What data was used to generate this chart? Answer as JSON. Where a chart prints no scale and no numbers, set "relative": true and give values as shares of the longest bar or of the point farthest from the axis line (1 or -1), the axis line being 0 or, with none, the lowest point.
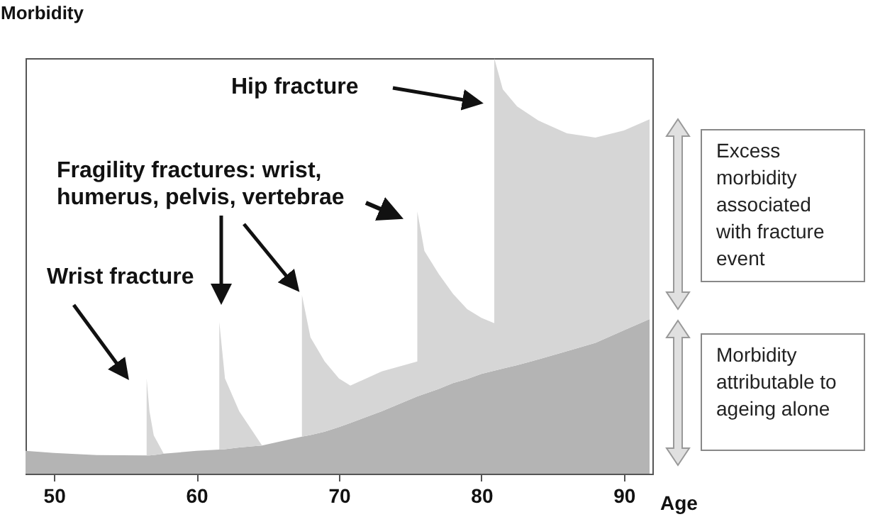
{
  "chart_data": {
    "type": "area",
    "relative": true,
    "stacked": true,
    "ylabel": "Morbidity",
    "xlabel": "Age",
    "xlim": [
      48,
      92
    ],
    "xticks": [
      50,
      60,
      70,
      80,
      90
    ],
    "x": [
      48,
      50,
      53,
      56.5,
      56.5,
      56.7,
      57.0,
      57.7,
      60,
      61.6,
      61.6,
      62.0,
      63.0,
      64.0,
      64.6,
      67.4,
      67.4,
      68,
      69,
      70,
      70.8,
      73,
      75.5,
      75.5,
      76,
      77,
      78,
      79,
      80,
      80.9,
      80.9,
      81.5,
      82.5,
      84,
      86,
      88,
      90,
      91.8
    ],
    "series": [
      {
        "color": "#b4b4b4",
        "values": [
          0.055,
          0.05,
          0.045,
          0.044,
          0.044,
          0.044,
          0.045,
          0.048,
          0.055,
          0.058,
          0.058,
          0.059,
          0.063,
          0.066,
          0.068,
          0.089,
          0.089,
          0.093,
          0.101,
          0.112,
          0.122,
          0.15,
          0.186,
          0.186,
          0.192,
          0.204,
          0.218,
          0.228,
          0.24,
          0.248,
          0.248,
          0.253,
          0.261,
          0.275,
          0.295,
          0.315,
          0.345,
          0.372
        ]
      },
      {
        "color": "#d6d6d6",
        "values": [
          0,
          0,
          0,
          0,
          0.185,
          0.106,
          0.047,
          0,
          0,
          0,
          0.307,
          0.17,
          0.087,
          0.033,
          0,
          0,
          0.341,
          0.235,
          0.169,
          0.117,
          0.09,
          0.096,
          0.084,
          0.445,
          0.344,
          0.277,
          0.215,
          0.168,
          0.135,
          0.114,
          0.752,
          0.672,
          0.623,
          0.575,
          0.524,
          0.494,
          0.481,
          0.481
        ]
      }
    ],
    "annotations": [
      "Hip fracture",
      "Fragility fractures: wrist, humerus, pelvis, vertebrae",
      "Wrist fracture",
      "Excess morbidity associated with fracture event",
      "Morbidity attributable to ageing alone"
    ]
  }
}
